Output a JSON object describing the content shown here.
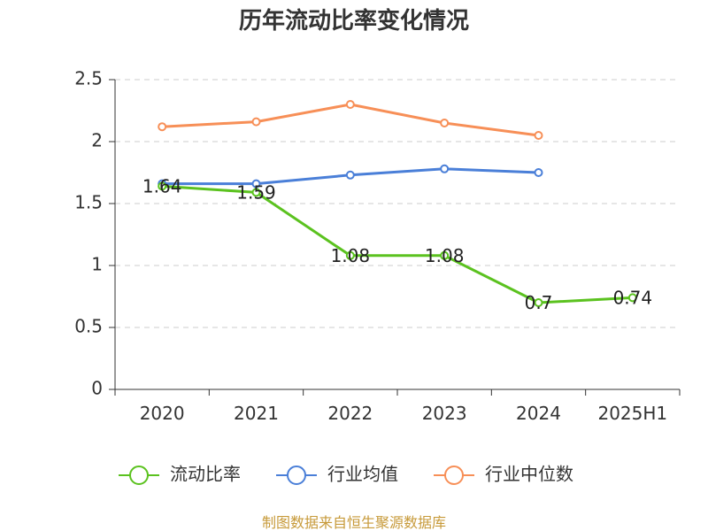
{
  "chart_data": {
    "type": "line",
    "title": "历年流动比率变化情况",
    "categories": [
      "2020",
      "2021",
      "2022",
      "2023",
      "2024",
      "2025H1"
    ],
    "y_ticks": [
      "0",
      "0.5",
      "1",
      "1.5",
      "2",
      "2.5"
    ],
    "ylim": [
      0,
      2.5
    ],
    "grid": true,
    "legend_position": "bottom",
    "series": [
      {
        "name": "流动比率",
        "color": "#5bc21f",
        "values": [
          1.64,
          1.59,
          1.08,
          1.08,
          0.7,
          0.74
        ],
        "labels": [
          "1.64",
          "1.59",
          "1.08",
          "1.08",
          "0.7",
          "0.74"
        ]
      },
      {
        "name": "行业均值",
        "color": "#4a7fd8",
        "values": [
          1.66,
          1.66,
          1.73,
          1.78,
          1.75,
          null
        ]
      },
      {
        "name": "行业中位数",
        "color": "#f78f57",
        "values": [
          2.12,
          2.16,
          2.3,
          2.15,
          2.05,
          null
        ]
      }
    ]
  },
  "source_note": "制图数据来自恒生聚源数据库"
}
